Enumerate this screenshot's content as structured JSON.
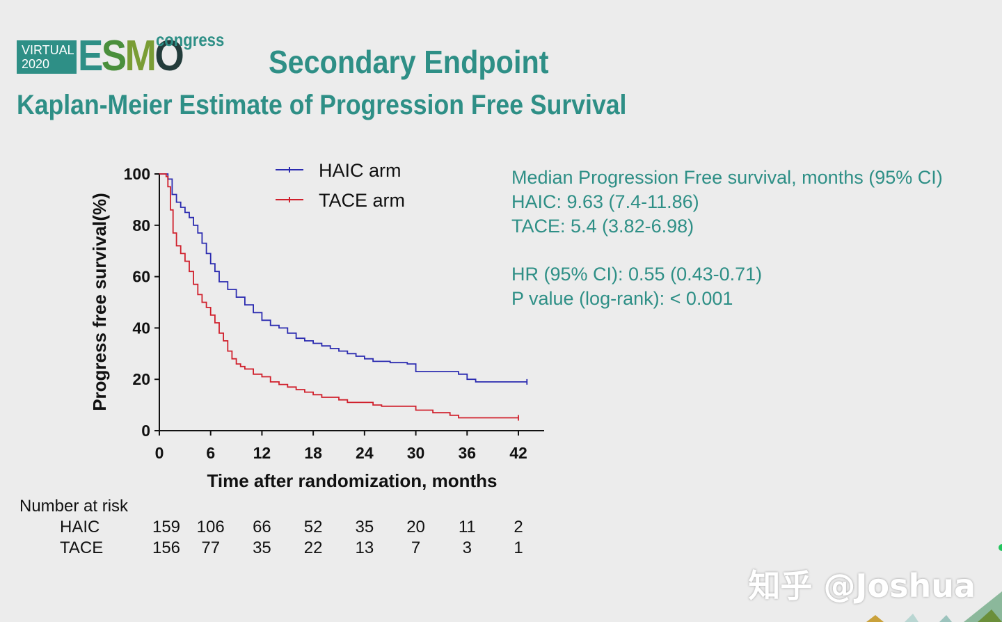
{
  "logo": {
    "virtual": "VIRTUAL",
    "year": "2020",
    "esmo": [
      "E",
      "S",
      "M",
      "O"
    ],
    "congress": "congress"
  },
  "header": {
    "title": "Secondary Endpoint",
    "subtitle": "Kaplan-Meier Estimate of Progression Free Survival"
  },
  "stats": {
    "line1": "Median Progression Free survival, months (95% CI)",
    "line2": "HAIC: 9.63 (7.4-11.86)",
    "line3": "TACE: 5.4 (3.82-6.98)",
    "line4": "HR (95% CI): 0.55 (0.43-0.71)",
    "line5": "P value (log-rank): < 0.001"
  },
  "risk_table": {
    "title": "Number at risk",
    "rows": [
      {
        "label": "HAIC",
        "values": [
          "159",
          "106",
          "66",
          "52",
          "35",
          "20",
          "11",
          "2"
        ]
      },
      {
        "label": "TACE",
        "values": [
          "156",
          "77",
          "35",
          "22",
          "13",
          "7",
          "3",
          "1"
        ]
      }
    ]
  },
  "watermark": "知乎 @Joshua",
  "colors": {
    "accent": "#2e8f86",
    "haic": "#2b2bb0",
    "tace": "#d0202c",
    "background": "#ececec"
  },
  "chart_data": {
    "type": "line",
    "subtype": "kaplan-meier step curve",
    "xlabel": "Time after randomization, months",
    "ylabel": "Progress free survival(%)",
    "xlim": [
      0,
      45
    ],
    "ylim": [
      0,
      100
    ],
    "xticks": [
      0,
      6,
      12,
      18,
      24,
      30,
      36,
      42
    ],
    "yticks": [
      0,
      20,
      40,
      60,
      80,
      100
    ],
    "legend_position": "top-center",
    "series": [
      {
        "name": "HAIC arm",
        "color": "#2b2bb0",
        "points": [
          [
            0,
            100
          ],
          [
            0.8,
            100
          ],
          [
            1,
            98
          ],
          [
            1.5,
            92
          ],
          [
            2,
            89
          ],
          [
            2.5,
            87
          ],
          [
            3,
            85
          ],
          [
            3.5,
            83
          ],
          [
            4,
            80
          ],
          [
            4.5,
            77
          ],
          [
            5,
            73
          ],
          [
            5.5,
            69
          ],
          [
            6,
            65
          ],
          [
            6.5,
            62
          ],
          [
            7,
            58
          ],
          [
            8,
            55
          ],
          [
            9,
            52
          ],
          [
            10,
            49
          ],
          [
            11,
            46
          ],
          [
            12,
            43
          ],
          [
            13,
            41
          ],
          [
            14,
            40
          ],
          [
            15,
            38
          ],
          [
            16,
            36
          ],
          [
            17,
            35
          ],
          [
            18,
            34
          ],
          [
            19,
            33
          ],
          [
            20,
            32
          ],
          [
            21,
            31
          ],
          [
            22,
            30
          ],
          [
            23,
            29
          ],
          [
            24,
            28
          ],
          [
            25,
            27
          ],
          [
            27,
            26.5
          ],
          [
            29,
            26
          ],
          [
            30,
            23
          ],
          [
            33,
            23
          ],
          [
            35,
            22
          ],
          [
            36,
            20
          ],
          [
            37,
            19
          ],
          [
            40,
            19
          ],
          [
            43,
            19
          ]
        ]
      },
      {
        "name": "TACE arm",
        "color": "#d0202c",
        "points": [
          [
            0,
            100
          ],
          [
            0.8,
            99
          ],
          [
            1,
            95
          ],
          [
            1.3,
            86
          ],
          [
            1.6,
            77
          ],
          [
            2,
            72
          ],
          [
            2.5,
            69
          ],
          [
            3,
            66
          ],
          [
            3.5,
            62
          ],
          [
            4,
            57
          ],
          [
            4.5,
            53
          ],
          [
            5,
            50
          ],
          [
            5.5,
            48
          ],
          [
            6,
            45
          ],
          [
            6.5,
            42
          ],
          [
            7,
            38
          ],
          [
            7.5,
            35
          ],
          [
            8,
            31
          ],
          [
            8.5,
            28
          ],
          [
            9,
            26
          ],
          [
            9.5,
            25
          ],
          [
            10,
            24
          ],
          [
            11,
            22
          ],
          [
            12,
            21
          ],
          [
            13,
            19
          ],
          [
            14,
            18
          ],
          [
            15,
            17
          ],
          [
            16,
            16
          ],
          [
            17,
            15
          ],
          [
            18,
            14
          ],
          [
            19,
            13
          ],
          [
            21,
            12
          ],
          [
            22,
            11
          ],
          [
            25,
            10
          ],
          [
            26,
            9.5
          ],
          [
            30,
            8
          ],
          [
            32,
            7
          ],
          [
            34,
            6
          ],
          [
            35,
            5
          ],
          [
            42,
            5
          ]
        ]
      }
    ]
  }
}
